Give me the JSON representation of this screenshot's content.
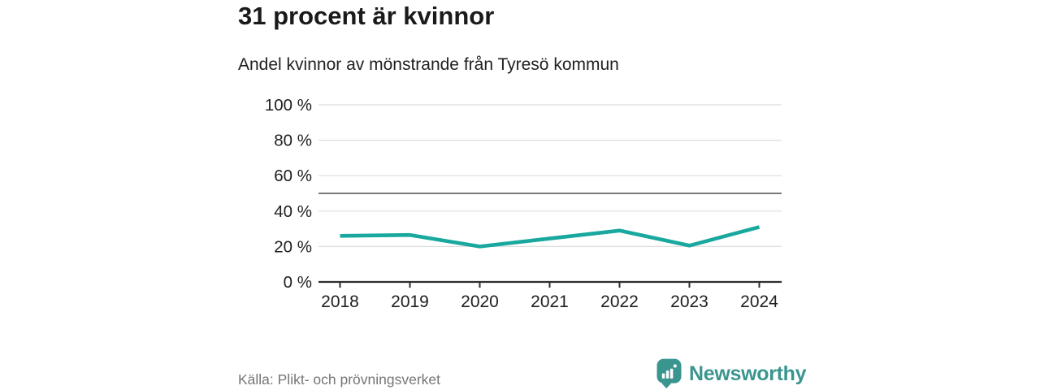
{
  "header": {
    "title": "31 procent är kvinnor",
    "subtitle": "Andel kvinnor av mönstrande från Tyresö kommun"
  },
  "chart_data": {
    "type": "line",
    "title": "31 procent är kvinnor",
    "subtitle": "Andel kvinnor av mönstrande från Tyresö kommun",
    "categories": [
      "2018",
      "2019",
      "2020",
      "2021",
      "2022",
      "2023",
      "2024"
    ],
    "series": [
      {
        "name": "Andel kvinnor av mönstrande",
        "values": [
          26,
          26.5,
          20,
          24.5,
          29,
          20.5,
          31
        ]
      }
    ],
    "ylim": [
      0,
      100
    ],
    "yticks": [
      0,
      20,
      40,
      60,
      80,
      100
    ],
    "ytick_labels": [
      "0 %",
      "20 %",
      "40 %",
      "60 %",
      "80 %",
      "100 %"
    ],
    "reference_line": 50,
    "grid": true,
    "legend": "none"
  },
  "footer": {
    "source": "Källa: Plikt- och prövningsverket",
    "brand": "Newsworthy"
  },
  "colors": {
    "accent_line": "#18a89e",
    "brand_teal": "#3a958f",
    "grid": "#dddddd",
    "reference": "#4d4d4d",
    "axis": "#2e2e2e",
    "text_dark": "#1a1a1a",
    "text_muted": "#767676"
  }
}
